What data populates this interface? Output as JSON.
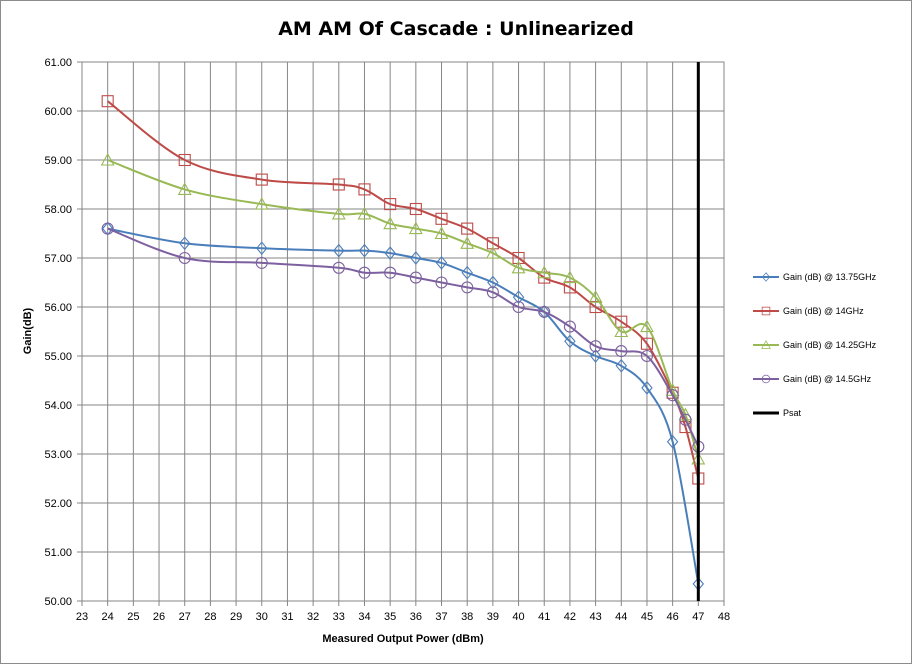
{
  "chart_data": {
    "type": "line",
    "title": "AM AM Of Cascade : Unlinearized",
    "xlabel": "Measured Output Power (dBm)",
    "ylabel": "Gain(dB)",
    "xlim": [
      23,
      48
    ],
    "ylim": [
      50,
      61
    ],
    "x_ticks": [
      "23",
      "24",
      "25",
      "26",
      "27",
      "28",
      "29",
      "30",
      "31",
      "32",
      "33",
      "34",
      "35",
      "36",
      "37",
      "38",
      "39",
      "40",
      "41",
      "42",
      "43",
      "44",
      "45",
      "46",
      "47",
      "48"
    ],
    "y_ticks": [
      "50.00",
      "51.00",
      "52.00",
      "53.00",
      "54.00",
      "55.00",
      "56.00",
      "57.00",
      "58.00",
      "59.00",
      "60.00",
      "61.00"
    ],
    "grid": true,
    "legend_position": "right",
    "series": [
      {
        "name": "Gain (dB) @ 13.75GHz",
        "color": "#4a7ebb",
        "marker": "diamond",
        "x": [
          24,
          27,
          30,
          33,
          34,
          35,
          36,
          37,
          38,
          39,
          40,
          41,
          42,
          43,
          44,
          45,
          46,
          47
        ],
        "y": [
          57.6,
          57.3,
          57.2,
          57.15,
          57.15,
          57.1,
          57.0,
          56.9,
          56.7,
          56.5,
          56.2,
          55.9,
          55.3,
          55.0,
          54.8,
          54.35,
          53.25,
          50.35
        ]
      },
      {
        "name": "Gain (dB) @ 14GHz",
        "color": "#be4b48",
        "marker": "square",
        "x": [
          24,
          27,
          30,
          33,
          34,
          35,
          36,
          37,
          38,
          39,
          40,
          41,
          42,
          43,
          44,
          45,
          46,
          46.5,
          47
        ],
        "y": [
          60.2,
          59.0,
          58.6,
          58.5,
          58.4,
          58.1,
          58.0,
          57.8,
          57.6,
          57.3,
          57.0,
          56.6,
          56.4,
          56.0,
          55.7,
          55.25,
          54.25,
          53.55,
          52.5
        ]
      },
      {
        "name": "Gain (dB) @ 14.25GHz",
        "color": "#98b954",
        "marker": "triangle",
        "x": [
          24,
          27,
          30,
          33,
          34,
          35,
          36,
          37,
          38,
          39,
          40,
          41,
          42,
          43,
          44,
          45,
          46,
          46.5,
          47
        ],
        "y": [
          59.0,
          58.4,
          58.1,
          57.9,
          57.9,
          57.7,
          57.6,
          57.5,
          57.3,
          57.1,
          56.8,
          56.7,
          56.6,
          56.2,
          55.5,
          55.6,
          54.3,
          53.8,
          52.9
        ]
      },
      {
        "name": "Gain (dB) @ 14.5GHz",
        "color": "#7d60a0",
        "marker": "circle",
        "x": [
          24,
          27,
          30,
          33,
          34,
          35,
          36,
          37,
          38,
          39,
          40,
          41,
          42,
          43,
          44,
          45,
          46,
          46.5,
          47
        ],
        "y": [
          57.6,
          57.0,
          56.9,
          56.8,
          56.7,
          56.7,
          56.6,
          56.5,
          56.4,
          56.3,
          56.0,
          55.9,
          55.6,
          55.2,
          55.1,
          55.0,
          54.2,
          53.7,
          53.15
        ]
      },
      {
        "name": "Psat",
        "color": "#000000",
        "marker": "none",
        "x": [
          47,
          47
        ],
        "y": [
          50,
          61
        ]
      }
    ]
  }
}
